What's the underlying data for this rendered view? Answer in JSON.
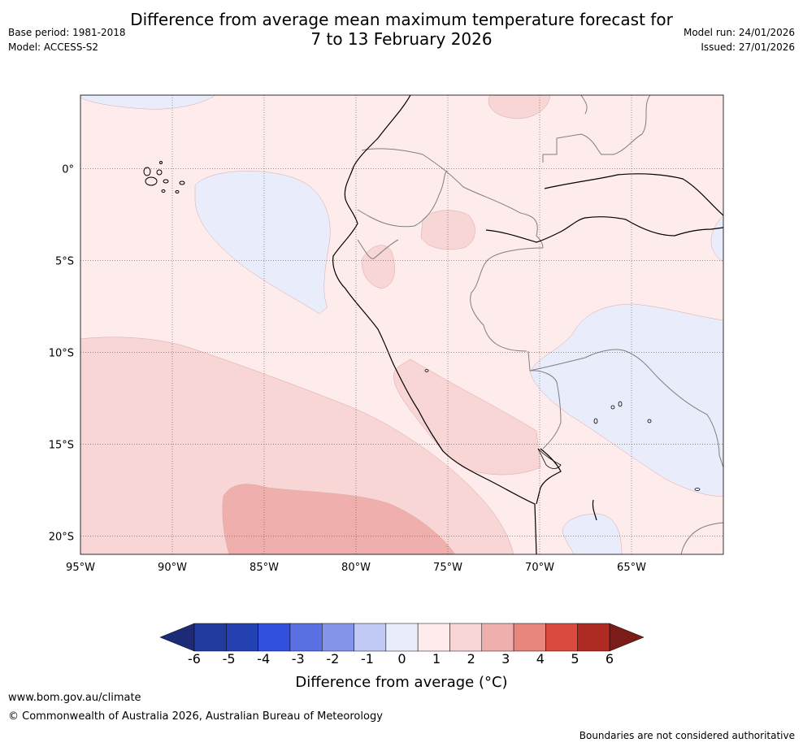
{
  "header": {
    "title_line1": "Difference from average mean maximum temperature forecast for",
    "title_line2": "7 to 13 February 2026",
    "base_period": "Base period: 1981-2018",
    "model": "Model: ACCESS-S2",
    "model_run": "Model run: 24/01/2026",
    "issued": "Issued: 27/01/2026"
  },
  "map": {
    "lon_range": [
      -95,
      -60
    ],
    "lat_range": [
      4,
      -21
    ],
    "x_ticks": [
      {
        "lon": -95,
        "label": "95°W"
      },
      {
        "lon": -90,
        "label": "90°W"
      },
      {
        "lon": -85,
        "label": "85°W"
      },
      {
        "lon": -80,
        "label": "80°W"
      },
      {
        "lon": -75,
        "label": "75°W"
      },
      {
        "lon": -70,
        "label": "70°W"
      },
      {
        "lon": -65,
        "label": "65°W"
      }
    ],
    "y_ticks": [
      {
        "lat": 0,
        "label": "0°"
      },
      {
        "lat": -5,
        "label": "5°S"
      },
      {
        "lat": -10,
        "label": "10°S"
      },
      {
        "lat": -15,
        "label": "15°S"
      },
      {
        "lat": -20,
        "label": "20°S"
      }
    ],
    "colors": {
      "bin_0_1": "#fdeceb",
      "bin_1_2": "#f7d6d5",
      "bin_2_3": "#efb0ad",
      "bin_m1_0": "#e9ecfb",
      "coast": "#000000",
      "border": "#7f7f7f",
      "grid": "#555555"
    }
  },
  "colorbar": {
    "title": "Difference from average (°C)",
    "ticks": [
      "-6",
      "-5",
      "-4",
      "-3",
      "-2",
      "-1",
      "0",
      "1",
      "2",
      "3",
      "4",
      "5",
      "6"
    ],
    "bins": [
      "#233b9e",
      "#2441b1",
      "#3150dd",
      "#5a70e3",
      "#8494e9",
      "#c1c9f5",
      "#e9ecfb",
      "#fdeceb",
      "#f7d6d5",
      "#efb0ad",
      "#e8857c",
      "#db4a3e",
      "#ae2b23"
    ],
    "under_color": "#1c2a78",
    "over_color": "#7a1c18"
  },
  "footer": {
    "url": "www.bom.gov.au/climate",
    "copyright": "© Commonwealth of Australia 2026, Australian Bureau of Meteorology",
    "note": "Boundaries are not considered authoritative"
  }
}
